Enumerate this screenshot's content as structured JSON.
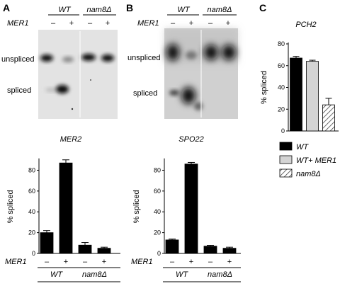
{
  "panel_a": {
    "label": "A",
    "genotype_wt": "WT",
    "genotype_mut": "nam8Δ",
    "mer1_label": "MER1",
    "lanes": [
      "–",
      "+",
      "–",
      "+"
    ],
    "band_unspliced": "unspliced",
    "band_spliced": "spliced",
    "chart_title": "MER2"
  },
  "panel_b": {
    "label": "B",
    "genotype_wt": "WT",
    "genotype_mut": "nam8Δ",
    "mer1_label": "MER1",
    "lanes": [
      "–",
      "+",
      "–",
      "+"
    ],
    "band_unspliced": "unspliced",
    "band_spliced": "spliced",
    "chart_title": "SPO22"
  },
  "panel_c": {
    "label": "C",
    "chart_title": "PCH2",
    "legend": [
      "WT",
      "WT+ MER1",
      "nam8Δ"
    ]
  },
  "chart_data": [
    {
      "type": "bar",
      "title": "MER2",
      "ylabel": "% spliced",
      "ylim": [
        0,
        90
      ],
      "yticks": [
        0,
        20,
        40,
        60,
        80
      ],
      "categories": [
        "WT –",
        "WT +",
        "nam8Δ –",
        "nam8Δ +"
      ],
      "values": [
        20,
        87,
        8,
        5
      ],
      "errors": [
        2,
        3,
        2.5,
        1
      ],
      "x_mer1_labels": [
        "–",
        "+",
        "–",
        "+"
      ],
      "x_group_labels": [
        "WT",
        "nam8Δ"
      ],
      "x_row_label": "MER1"
    },
    {
      "type": "bar",
      "title": "SPO22",
      "ylabel": "% spliced",
      "ylim": [
        0,
        90
      ],
      "yticks": [
        0,
        20,
        40,
        60,
        80
      ],
      "categories": [
        "WT –",
        "WT +",
        "nam8Δ –",
        "nam8Δ +"
      ],
      "values": [
        13,
        86,
        7,
        5
      ],
      "errors": [
        0.8,
        1.5,
        0.8,
        1
      ],
      "x_mer1_labels": [
        "–",
        "+",
        "–",
        "+"
      ],
      "x_group_labels": [
        "WT",
        "nam8Δ"
      ],
      "x_row_label": "MER1"
    },
    {
      "type": "bar",
      "title": "PCH2",
      "ylabel": "% spliced",
      "ylim": [
        0,
        80
      ],
      "yticks": [
        0,
        20,
        40,
        60,
        80
      ],
      "categories": [
        "WT",
        "WT+ MER1",
        "nam8Δ"
      ],
      "values": [
        67,
        64,
        24
      ],
      "errors": [
        1.5,
        1,
        6
      ],
      "fills": [
        "#000000",
        "#d4d4d4",
        "hatch"
      ]
    }
  ]
}
